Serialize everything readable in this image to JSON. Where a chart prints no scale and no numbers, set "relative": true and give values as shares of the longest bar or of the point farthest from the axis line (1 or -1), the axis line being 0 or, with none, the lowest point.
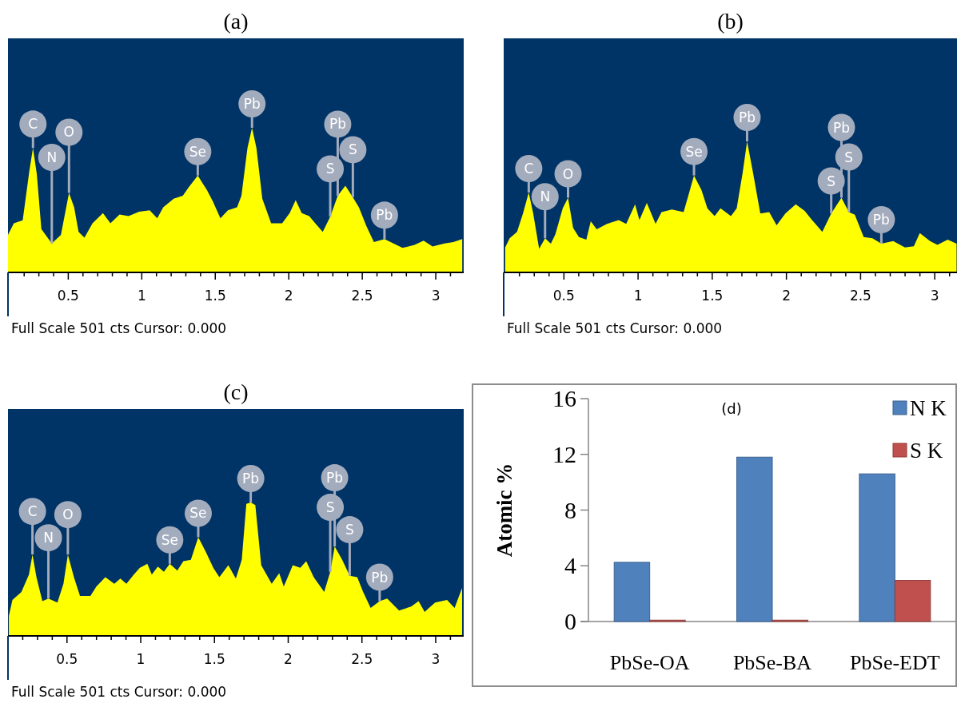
{
  "chart_data": [
    {
      "type": "area",
      "title": "(a)",
      "relative": true,
      "xlim": [
        0.09,
        3.19
      ],
      "xticks": [
        {
          "value": 0.2,
          "label": null
        },
        {
          "value": 0.3,
          "label": null
        },
        {
          "value": 0.4,
          "label": null
        },
        0.5,
        {
          "value": 0.6,
          "label": null
        },
        {
          "value": 0.7,
          "label": null
        },
        {
          "value": 0.8,
          "label": null
        },
        {
          "value": 0.9,
          "label": null
        },
        1,
        {
          "value": 1.1,
          "label": null
        },
        {
          "value": 1.2,
          "label": null
        },
        {
          "value": 1.3,
          "label": null
        },
        {
          "value": 1.4,
          "label": null
        },
        1.5,
        {
          "value": 1.6,
          "label": null
        },
        {
          "value": 1.7,
          "label": null
        },
        {
          "value": 1.8,
          "label": null
        },
        {
          "value": 1.9,
          "label": null
        },
        2,
        {
          "value": 2.1,
          "label": null
        },
        {
          "value": 2.2,
          "label": null
        },
        {
          "value": 2.3,
          "label": null
        },
        {
          "value": 2.4,
          "label": null
        },
        2.5,
        {
          "value": 2.6,
          "label": null
        },
        {
          "value": 2.7,
          "label": null
        },
        {
          "value": 2.8,
          "label": null
        },
        {
          "value": 2.9,
          "label": null
        },
        3,
        {
          "value": 3.1,
          "label": null
        }
      ],
      "series": [
        {
          "color": "#ffff00",
          "x": [
            0.09,
            0.13,
            0.19,
            0.235,
            0.26,
            0.286,
            0.317,
            0.388,
            0.45,
            0.505,
            0.54,
            0.57,
            0.61,
            0.665,
            0.736,
            0.787,
            0.849,
            0.91,
            0.982,
            1.054,
            1.105,
            1.146,
            1.217,
            1.279,
            1.32,
            1.381,
            1.443,
            1.484,
            1.535,
            1.586,
            1.648,
            1.678,
            1.719,
            1.75,
            1.78,
            1.82,
            1.88,
            1.955,
            2.006,
            2.047,
            2.088,
            2.139,
            2.18,
            2.231,
            2.282,
            2.333,
            2.385,
            2.436,
            2.477,
            2.528,
            2.579,
            2.651,
            2.712,
            2.774,
            2.856,
            2.917,
            2.978,
            3.06,
            3.12,
            3.18
          ],
          "values": [
            0.26,
            0.34,
            0.36,
            0.7,
            0.86,
            0.68,
            0.3,
            0.2,
            0.26,
            0.55,
            0.45,
            0.28,
            0.24,
            0.34,
            0.41,
            0.34,
            0.4,
            0.39,
            0.42,
            0.43,
            0.375,
            0.45,
            0.51,
            0.53,
            0.59,
            0.67,
            0.57,
            0.49,
            0.375,
            0.43,
            0.45,
            0.53,
            0.86,
            1.0,
            0.86,
            0.51,
            0.34,
            0.34,
            0.41,
            0.5,
            0.41,
            0.39,
            0.34,
            0.28,
            0.385,
            0.53,
            0.6,
            0.52,
            0.45,
            0.32,
            0.21,
            0.23,
            0.2,
            0.17,
            0.19,
            0.22,
            0.18,
            0.2,
            0.21,
            0.23
          ]
        }
      ],
      "annotations": [
        {
          "text": "C",
          "x": 0.26,
          "y": 0.86
        },
        {
          "text": "N",
          "x": 0.388,
          "y": 0.2
        },
        {
          "text": "O",
          "x": 0.505,
          "y": 0.55
        },
        {
          "text": "Se",
          "x": 1.381,
          "y": 0.67
        },
        {
          "text": "Pb",
          "x": 1.75,
          "y": 1.0
        },
        {
          "text": "Pb",
          "x": 2.333,
          "y": 0.53
        },
        {
          "text": "S",
          "x": 2.436,
          "y": 0.52
        },
        {
          "text": "S",
          "x": 2.282,
          "y": 0.385
        },
        {
          "text": "Pb",
          "x": 2.651,
          "y": 0.23
        },
        "Full Scale 501 cts Cursor: 0.000"
      ]
    },
    {
      "type": "area",
      "title": "(b)",
      "relative": true,
      "xlim": [
        0.094,
        3.15
      ],
      "xticks": [
        {
          "value": 0.2,
          "label": null
        },
        {
          "value": 0.3,
          "label": null
        },
        {
          "value": 0.4,
          "label": null
        },
        0.5,
        {
          "value": 0.6,
          "label": null
        },
        {
          "value": 0.7,
          "label": null
        },
        {
          "value": 0.8,
          "label": null
        },
        {
          "value": 0.9,
          "label": null
        },
        1,
        {
          "value": 1.1,
          "label": null
        },
        {
          "value": 1.2,
          "label": null
        },
        {
          "value": 1.3,
          "label": null
        },
        {
          "value": 1.4,
          "label": null
        },
        1.5,
        {
          "value": 1.6,
          "label": null
        },
        {
          "value": 1.7,
          "label": null
        },
        {
          "value": 1.8,
          "label": null
        },
        {
          "value": 1.9,
          "label": null
        },
        2,
        {
          "value": 2.1,
          "label": null
        },
        {
          "value": 2.2,
          "label": null
        },
        {
          "value": 2.3,
          "label": null
        },
        {
          "value": 2.4,
          "label": null
        },
        2.5,
        {
          "value": 2.6,
          "label": null
        },
        {
          "value": 2.7,
          "label": null
        },
        {
          "value": 2.8,
          "label": null
        },
        {
          "value": 2.9,
          "label": null
        },
        3,
        {
          "value": 3.1,
          "label": null
        }
      ],
      "series": [
        {
          "color": "#ffff00",
          "x": [
            0.104,
            0.134,
            0.184,
            0.224,
            0.263,
            0.293,
            0.333,
            0.373,
            0.412,
            0.442,
            0.492,
            0.528,
            0.562,
            0.601,
            0.651,
            0.681,
            0.721,
            0.79,
            0.87,
            0.92,
            0.98,
            1.009,
            1.059,
            1.118,
            1.158,
            1.228,
            1.307,
            1.337,
            1.377,
            1.427,
            1.467,
            1.516,
            1.556,
            1.626,
            1.665,
            1.705,
            1.735,
            1.775,
            1.824,
            1.884,
            1.934,
            1.993,
            2.063,
            2.123,
            2.173,
            2.242,
            2.302,
            2.371,
            2.421,
            2.461,
            2.521,
            2.58,
            2.64,
            2.72,
            2.799,
            2.859,
            2.899,
            2.968,
            3.018,
            3.087,
            3.147
          ],
          "values": [
            0.19,
            0.26,
            0.31,
            0.45,
            0.61,
            0.45,
            0.18,
            0.26,
            0.22,
            0.29,
            0.49,
            0.57,
            0.34,
            0.27,
            0.25,
            0.39,
            0.33,
            0.37,
            0.4,
            0.37,
            0.52,
            0.4,
            0.53,
            0.37,
            0.46,
            0.48,
            0.46,
            0.58,
            0.74,
            0.63,
            0.49,
            0.43,
            0.49,
            0.43,
            0.49,
            0.76,
            1.0,
            0.76,
            0.45,
            0.46,
            0.36,
            0.45,
            0.52,
            0.47,
            0.4,
            0.31,
            0.45,
            0.57,
            0.46,
            0.44,
            0.27,
            0.26,
            0.22,
            0.24,
            0.19,
            0.2,
            0.3,
            0.24,
            0.21,
            0.25,
            0.22
          ]
        }
      ],
      "annotations": [
        {
          "text": "C",
          "x": 0.263,
          "y": 0.61
        },
        {
          "text": "N",
          "x": 0.373,
          "y": 0.26
        },
        {
          "text": "O",
          "x": 0.528,
          "y": 0.57
        },
        {
          "text": "Se",
          "x": 1.377,
          "y": 0.74
        },
        {
          "text": "Pb",
          "x": 1.735,
          "y": 1.0
        },
        {
          "text": "Pb",
          "x": 2.371,
          "y": 0.57
        },
        {
          "text": "S",
          "x": 2.421,
          "y": 0.46
        },
        {
          "text": "S",
          "x": 2.302,
          "y": 0.45
        },
        {
          "text": "Pb",
          "x": 2.64,
          "y": 0.22
        },
        "Full Scale 501 cts Cursor: 0.000"
      ]
    },
    {
      "type": "area",
      "title": "(c)",
      "relative": true,
      "xlim": [
        0.1,
        3.19
      ],
      "xticks": [
        {
          "value": 0.2,
          "label": null
        },
        {
          "value": 0.3,
          "label": null
        },
        {
          "value": 0.4,
          "label": null
        },
        0.5,
        {
          "value": 0.6,
          "label": null
        },
        {
          "value": 0.7,
          "label": null
        },
        {
          "value": 0.8,
          "label": null
        },
        {
          "value": 0.9,
          "label": null
        },
        1,
        {
          "value": 1.1,
          "label": null
        },
        {
          "value": 1.2,
          "label": null
        },
        {
          "value": 1.3,
          "label": null
        },
        {
          "value": 1.4,
          "label": null
        },
        1.5,
        {
          "value": 1.6,
          "label": null
        },
        {
          "value": 1.7,
          "label": null
        },
        {
          "value": 1.8,
          "label": null
        },
        {
          "value": 1.9,
          "label": null
        },
        2,
        {
          "value": 2.1,
          "label": null
        },
        {
          "value": 2.2,
          "label": null
        },
        {
          "value": 2.3,
          "label": null
        },
        {
          "value": 2.4,
          "label": null
        },
        2.5,
        {
          "value": 2.6,
          "label": null
        },
        {
          "value": 2.7,
          "label": null
        },
        {
          "value": 2.8,
          "label": null
        },
        {
          "value": 2.9,
          "label": null
        },
        3,
        {
          "value": 3.1,
          "label": null
        }
      ],
      "series": [
        {
          "color": "#ffff00",
          "x": [
            0.106,
            0.13,
            0.191,
            0.242,
            0.266,
            0.293,
            0.333,
            0.374,
            0.435,
            0.476,
            0.506,
            0.547,
            0.588,
            0.659,
            0.699,
            0.76,
            0.821,
            0.862,
            0.903,
            0.953,
            0.994,
            1.045,
            1.075,
            1.116,
            1.157,
            1.197,
            1.248,
            1.289,
            1.34,
            1.39,
            1.441,
            1.492,
            1.533,
            1.594,
            1.645,
            1.685,
            1.716,
            1.746,
            1.777,
            1.817,
            1.888,
            1.939,
            1.97,
            2.031,
            2.082,
            2.122,
            2.173,
            2.244,
            2.285,
            2.315,
            2.366,
            2.417,
            2.468,
            2.508,
            2.559,
            2.62,
            2.671,
            2.752,
            2.834,
            2.884,
            2.925,
            2.996,
            3.077,
            3.128,
            3.179
          ],
          "values": [
            0.15,
            0.27,
            0.33,
            0.46,
            0.61,
            0.44,
            0.26,
            0.28,
            0.25,
            0.39,
            0.61,
            0.44,
            0.3,
            0.3,
            0.37,
            0.44,
            0.39,
            0.43,
            0.39,
            0.46,
            0.51,
            0.54,
            0.46,
            0.52,
            0.48,
            0.54,
            0.49,
            0.56,
            0.57,
            0.74,
            0.63,
            0.51,
            0.44,
            0.53,
            0.43,
            0.57,
            0.99,
            1.0,
            0.98,
            0.53,
            0.39,
            0.47,
            0.37,
            0.53,
            0.51,
            0.56,
            0.44,
            0.33,
            0.48,
            0.67,
            0.57,
            0.45,
            0.44,
            0.33,
            0.21,
            0.26,
            0.28,
            0.19,
            0.22,
            0.26,
            0.18,
            0.25,
            0.27,
            0.21,
            0.36
          ]
        }
      ],
      "annotations": [
        {
          "text": "C",
          "x": 0.266,
          "y": 0.61
        },
        {
          "text": "N",
          "x": 0.374,
          "y": 0.28
        },
        {
          "text": "O",
          "x": 0.506,
          "y": 0.61
        },
        {
          "text": "Se",
          "x": 1.197,
          "y": 0.54
        },
        {
          "text": "Se",
          "x": 1.39,
          "y": 0.74
        },
        {
          "text": "Pb",
          "x": 1.746,
          "y": 1.0
        },
        {
          "text": "Pb",
          "x": 2.315,
          "y": 0.67
        },
        {
          "text": "S",
          "x": 2.285,
          "y": 0.48
        },
        {
          "text": "S",
          "x": 2.417,
          "y": 0.45
        },
        {
          "text": "Pb",
          "x": 2.62,
          "y": 0.26
        },
        "Full Scale 501 cts Cursor: 0.000"
      ]
    },
    {
      "type": "bar",
      "title": "(d)",
      "ylabel": "Atomic %",
      "categories": [
        "PbSe-OA",
        "PbSe-BA",
        "PbSe-EDT"
      ],
      "series": [
        {
          "name": "N K",
          "color": "#4f81bd",
          "values": [
            4.25,
            11.8,
            10.6
          ]
        },
        {
          "name": "S K",
          "color": "#c0504d",
          "values": [
            0.1,
            0.1,
            2.95
          ]
        }
      ],
      "ylim": [
        0,
        16
      ],
      "yticks": [
        0,
        4,
        8,
        12,
        16
      ],
      "legend": "top right"
    }
  ]
}
